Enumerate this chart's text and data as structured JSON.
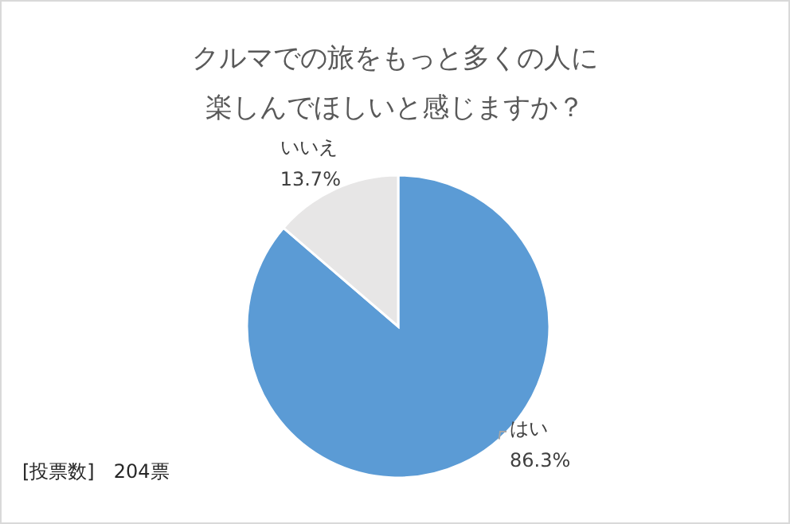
{
  "chart_data": {
    "type": "pie",
    "title": "クルマでの旅をもっと多くの人に楽しんでほしいと感じますか？",
    "categories": [
      "はい",
      "いいえ"
    ],
    "values": [
      86.3,
      13.7
    ],
    "value_labels": [
      "86.3%",
      "13.7%"
    ],
    "colors": [
      "#5b9bd5",
      "#e7e6e6"
    ],
    "annotations": [
      "[投票数]　204票"
    ],
    "legend": false
  }
}
